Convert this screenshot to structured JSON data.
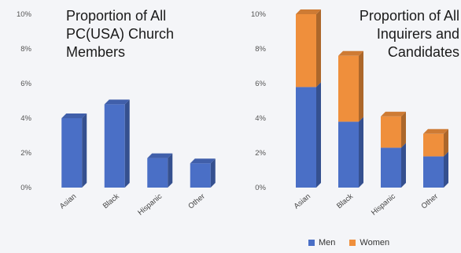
{
  "chart_data": [
    {
      "type": "bar",
      "title_lines": [
        "Proportion of All",
        "PC(USA) Church",
        "Members"
      ],
      "categories": [
        "Asian",
        "Black",
        "Hispanic",
        "Other"
      ],
      "series": [
        {
          "values": [
            4.0,
            4.8,
            1.7,
            1.4
          ]
        }
      ],
      "ylim": [
        0,
        10
      ],
      "yticks": [
        "0%",
        "2%",
        "4%",
        "6%",
        "8%",
        "10%"
      ],
      "grid": false,
      "colors": [
        "#4a6fc6"
      ]
    },
    {
      "type": "bar",
      "stacked": true,
      "title_lines": [
        "Proportion of All",
        "Inquirers and",
        "Candidates"
      ],
      "categories": [
        "Asian",
        "Black",
        "Hispanic",
        "Other"
      ],
      "series": [
        {
          "name": "Men",
          "values": [
            5.8,
            3.8,
            2.3,
            1.8
          ]
        },
        {
          "name": "Women",
          "values": [
            4.2,
            3.8,
            1.8,
            1.3
          ]
        }
      ],
      "ylim": [
        0,
        10
      ],
      "yticks": [
        "0%",
        "2%",
        "4%",
        "6%",
        "8%",
        "10%"
      ],
      "grid": false,
      "legend_position": "bottom",
      "colors": [
        "#4a6fc6",
        "#ef8f3c"
      ]
    }
  ],
  "legend": {
    "men_label": "Men",
    "women_label": "Women",
    "men_color": "#4a6fc6",
    "women_color": "#ef8f3c"
  }
}
